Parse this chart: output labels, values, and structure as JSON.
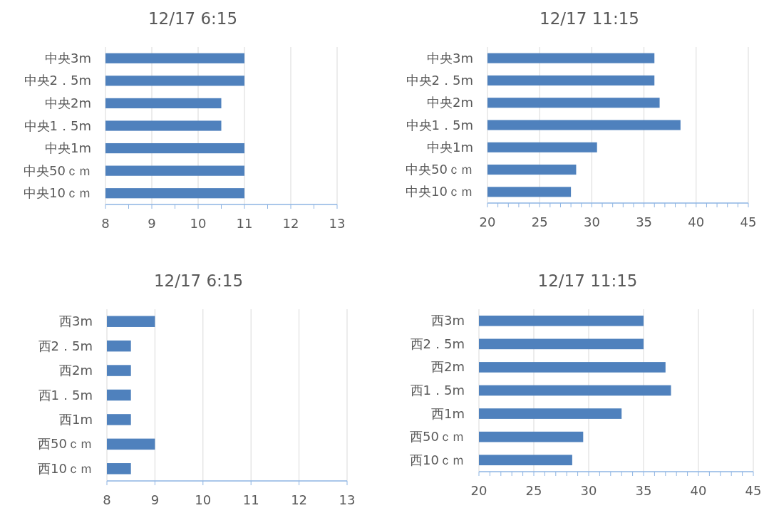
{
  "chart_data": [
    {
      "type": "bar",
      "orientation": "horizontal",
      "title": "12/17 6:15",
      "categories": [
        "中央3m",
        "中央2．5m",
        "中央2m",
        "中央1．5m",
        "中央1m",
        "中央50ｃｍ",
        "中央10ｃｍ"
      ],
      "values": [
        11,
        11,
        10.5,
        10.5,
        11,
        11,
        11
      ],
      "color": "#4f81bd",
      "xlim": [
        8,
        13
      ],
      "xticks": [
        8,
        {
          "value": 8.5,
          "label": null
        },
        9,
        {
          "value": 9.5,
          "label": null
        },
        10,
        {
          "value": 10.5,
          "label": null
        },
        11,
        {
          "value": 11.5,
          "label": null
        },
        12,
        {
          "value": 12.5,
          "label": null
        },
        13
      ],
      "grid": "x"
    },
    {
      "type": "bar",
      "orientation": "horizontal",
      "title": "12/17 11:15",
      "categories": [
        "中央3m",
        "中央2．5m",
        "中央2m",
        "中央1．5m",
        "中央1m",
        "中央50ｃｍ",
        "中央10ｃｍ"
      ],
      "values": [
        36,
        36,
        36.5,
        38.5,
        30.5,
        28.5,
        28
      ],
      "color": "#4f81bd",
      "xlim": [
        20,
        45
      ],
      "xticks": [
        20,
        {
          "value": 21,
          "label": null
        },
        {
          "value": 22,
          "label": null
        },
        {
          "value": 23,
          "label": null
        },
        {
          "value": 24,
          "label": null
        },
        25,
        {
          "value": 26,
          "label": null
        },
        {
          "value": 27,
          "label": null
        },
        {
          "value": 28,
          "label": null
        },
        {
          "value": 29,
          "label": null
        },
        30,
        {
          "value": 31,
          "label": null
        },
        {
          "value": 32,
          "label": null
        },
        {
          "value": 33,
          "label": null
        },
        {
          "value": 34,
          "label": null
        },
        35,
        {
          "value": 36,
          "label": null
        },
        {
          "value": 37,
          "label": null
        },
        {
          "value": 38,
          "label": null
        },
        {
          "value": 39,
          "label": null
        },
        40,
        {
          "value": 41,
          "label": null
        },
        {
          "value": 42,
          "label": null
        },
        {
          "value": 43,
          "label": null
        },
        {
          "value": 44,
          "label": null
        },
        45
      ],
      "grid": "x"
    },
    {
      "type": "bar",
      "orientation": "horizontal",
      "title": "12/17 6:15",
      "categories": [
        "西3m",
        "西2．5m",
        "西2m",
        "西1．5m",
        "西1m",
        "西50ｃｍ",
        "西10ｃｍ"
      ],
      "values": [
        9,
        8.5,
        8.5,
        8.5,
        8.5,
        9,
        8.5
      ],
      "color": "#4f81bd",
      "xlim": [
        8,
        13
      ],
      "xticks": [
        8,
        9,
        10,
        11,
        12,
        13
      ],
      "grid": "x"
    },
    {
      "type": "bar",
      "orientation": "horizontal",
      "title": "12/17 11:15",
      "categories": [
        "西3m",
        "西2．5m",
        "西2m",
        "西1．5m",
        "西1m",
        "西50ｃｍ",
        "西10ｃｍ"
      ],
      "values": [
        35,
        35,
        37,
        37.5,
        33,
        29.5,
        28.5
      ],
      "color": "#4f81bd",
      "xlim": [
        20,
        45
      ],
      "xticks": [
        20,
        {
          "value": 21,
          "label": null
        },
        {
          "value": 22,
          "label": null
        },
        {
          "value": 23,
          "label": null
        },
        {
          "value": 24,
          "label": null
        },
        25,
        {
          "value": 26,
          "label": null
        },
        {
          "value": 27,
          "label": null
        },
        {
          "value": 28,
          "label": null
        },
        {
          "value": 29,
          "label": null
        },
        30,
        {
          "value": 31,
          "label": null
        },
        {
          "value": 32,
          "label": null
        },
        {
          "value": 33,
          "label": null
        },
        {
          "value": 34,
          "label": null
        },
        35,
        {
          "value": 36,
          "label": null
        },
        {
          "value": 37,
          "label": null
        },
        {
          "value": 38,
          "label": null
        },
        {
          "value": 39,
          "label": null
        },
        40,
        {
          "value": 41,
          "label": null
        },
        {
          "value": 42,
          "label": null
        },
        {
          "value": 43,
          "label": null
        },
        {
          "value": 44,
          "label": null
        },
        45
      ],
      "grid": "x"
    }
  ]
}
